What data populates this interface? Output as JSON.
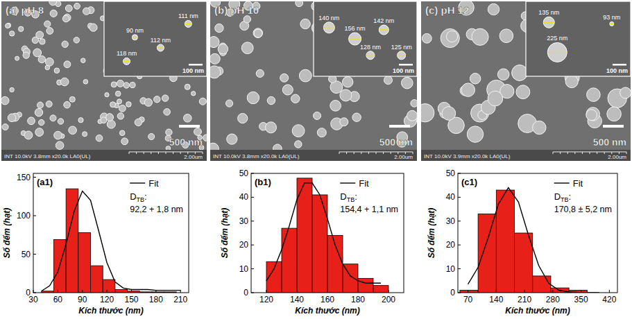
{
  "sem_images": [
    {
      "label": "(a) pH 8",
      "scale_bar": "500 nm",
      "info": "INT 10.0kV 3.8mm x20.0k LA0(UL)",
      "ruler": "2.00um",
      "inset_scale": "100 nm",
      "inset_labels": [
        "111 nm",
        "90 nm",
        "112 nm",
        "118 nm"
      ]
    },
    {
      "label": "(b) pH 10",
      "scale_bar": "500 nm",
      "info": "INT 10.0kV 3.8mm x20.0k LA0(UL)",
      "ruler": "2.00um",
      "inset_scale": "100 nm",
      "inset_labels": [
        "140 nm",
        "156 nm",
        "142 nm",
        "128 nm",
        "125 nm"
      ]
    },
    {
      "label": "(c) pH 12",
      "scale_bar": "500 nm",
      "info": "INT 10.0kV 3.9mm x20.0k LA0(UL)",
      "ruler": "2.00um",
      "inset_scale": "100 nm",
      "inset_labels": [
        "135 nm",
        "225 nm",
        "93 nm"
      ]
    }
  ],
  "chart_data": [
    {
      "type": "histogram",
      "title": "(a1)",
      "x_label": "Kích thước (nm)",
      "y_label": "Số đếm (hạt)",
      "bins": [
        40,
        55,
        70,
        85,
        100,
        115,
        130,
        145,
        160,
        175,
        190,
        205
      ],
      "values": [
        2,
        69,
        135,
        78,
        35,
        17,
        4,
        2,
        1,
        1,
        1
      ],
      "color": "#e8201a",
      "xlim": [
        30,
        220
      ],
      "xticks": [
        30,
        60,
        90,
        120,
        150,
        180,
        210
      ],
      "ylim": [
        0,
        155
      ],
      "yticks": [
        0,
        50,
        100,
        150
      ],
      "legend": "upper right",
      "series": [
        {
          "name": "Fit",
          "type": "line",
          "color": "#000000",
          "x": [
            40,
            50,
            60,
            70,
            80,
            90,
            100,
            110,
            120,
            130,
            140,
            150,
            160,
            170,
            180,
            190,
            200,
            210
          ],
          "values": [
            2,
            9,
            27,
            63,
            106,
            132,
            120,
            80,
            39,
            14,
            6,
            4,
            4,
            4,
            3,
            3,
            3,
            3
          ]
        }
      ],
      "annotation": {
        "symbol": "D",
        "subscript": "TB",
        "suffix": ":",
        "text": "92,2 + 1,8 nm"
      }
    },
    {
      "type": "histogram",
      "title": "(b1)",
      "x_label": "Kích thước (nm)",
      "y_label": "Số đếm (hạt)",
      "bins": [
        120,
        130,
        140,
        150,
        160,
        170,
        180,
        190,
        200
      ],
      "values": [
        13,
        27,
        48,
        41,
        24,
        12,
        6,
        3
      ],
      "color": "#e8201a",
      "xlim": [
        110,
        210
      ],
      "xticks": [
        120,
        140,
        160,
        180,
        200
      ],
      "ylim": [
        0,
        50
      ],
      "yticks": [
        0,
        10,
        20,
        30,
        40,
        50
      ],
      "legend": "upper right",
      "series": [
        {
          "name": "Fit",
          "type": "line",
          "color": "#000000",
          "x": [
            120,
            125,
            130,
            135,
            140,
            145,
            150,
            155,
            160,
            165,
            170,
            175,
            180,
            185,
            190,
            195
          ],
          "values": [
            5,
            10,
            18,
            28,
            39,
            46,
            46,
            41,
            31,
            20,
            12,
            7,
            5,
            4,
            4,
            4
          ]
        }
      ],
      "annotation": {
        "symbol": "D",
        "subscript": "TB",
        "suffix": ":",
        "text": "154,4 + 1,1 nm"
      }
    },
    {
      "type": "histogram",
      "title": "(c1)",
      "x_label": "Kích thước (nm)",
      "y_label": "Số đếm (hạt)",
      "bins": [
        50,
        95,
        140,
        185,
        230,
        275,
        320,
        365
      ],
      "values": [
        1,
        33,
        43,
        25,
        7,
        2,
        1
      ],
      "color": "#e8201a",
      "xlim": [
        45,
        440
      ],
      "xticks": [
        70,
        140,
        210,
        280,
        350,
        420
      ],
      "ylim": [
        0,
        50
      ],
      "yticks": [
        0,
        10,
        20,
        30,
        40,
        50
      ],
      "legend": "upper right",
      "series": [
        {
          "name": "Fit",
          "type": "line",
          "color": "#000000",
          "x": [
            70,
            95,
            120,
            145,
            170,
            195,
            220,
            245,
            270,
            295,
            320,
            345,
            370,
            395
          ],
          "values": [
            3.5,
            10.6,
            23,
            37,
            44,
            38,
            24,
            11.4,
            3.9,
            1,
            0.3,
            0.1,
            0,
            0
          ]
        }
      ],
      "annotation": {
        "symbol": "D",
        "subscript": "TB",
        "suffix": ":",
        "text": "170,8 ± 5,2 nm"
      }
    }
  ]
}
